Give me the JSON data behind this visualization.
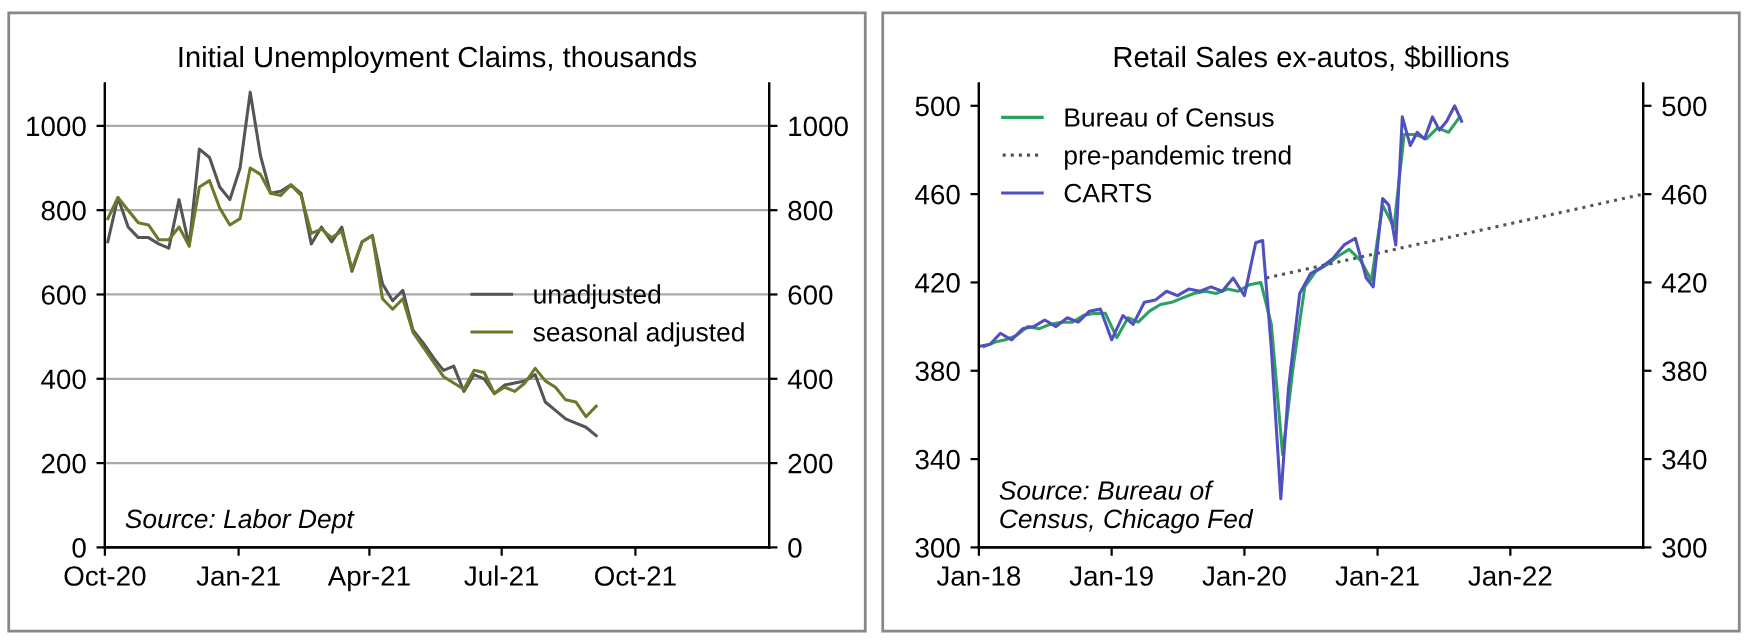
{
  "chart_data": [
    {
      "type": "line",
      "title": "Initial Unemployment Claims, thousands",
      "x": [
        "2020-10-03",
        "2020-10-10",
        "2020-10-17",
        "2020-10-24",
        "2020-10-31",
        "2020-11-07",
        "2020-11-14",
        "2020-11-21",
        "2020-11-28",
        "2020-12-05",
        "2020-12-12",
        "2020-12-19",
        "2020-12-26",
        "2021-01-02",
        "2021-01-09",
        "2021-01-16",
        "2021-01-23",
        "2021-01-30",
        "2021-02-06",
        "2021-02-13",
        "2021-02-20",
        "2021-02-27",
        "2021-03-06",
        "2021-03-13",
        "2021-03-20",
        "2021-03-27",
        "2021-04-03",
        "2021-04-10",
        "2021-04-17",
        "2021-04-24",
        "2021-05-01",
        "2021-05-08",
        "2021-05-15",
        "2021-05-22",
        "2021-05-29",
        "2021-06-05",
        "2021-06-12",
        "2021-06-19",
        "2021-06-26",
        "2021-07-03",
        "2021-07-10",
        "2021-07-17",
        "2021-07-24",
        "2021-07-31",
        "2021-08-07",
        "2021-08-14",
        "2021-08-21",
        "2021-08-28",
        "2021-09-04"
      ],
      "series": [
        {
          "name": "unadjusted",
          "color": "#555555",
          "values": [
            725,
            830,
            760,
            735,
            735,
            720,
            710,
            825,
            715,
            945,
            925,
            855,
            825,
            900,
            1080,
            930,
            840,
            845,
            860,
            840,
            720,
            760,
            725,
            760,
            655,
            725,
            740,
            625,
            585,
            610,
            515,
            485,
            450,
            420,
            430,
            370,
            410,
            400,
            365,
            385,
            390,
            395,
            410,
            345,
            325,
            305,
            295,
            285,
            265
          ]
        },
        {
          "name": "seasonal adjusted",
          "color": "#6b7a2a",
          "values": [
            780,
            830,
            800,
            770,
            765,
            730,
            730,
            760,
            715,
            855,
            870,
            805,
            765,
            780,
            900,
            885,
            840,
            835,
            860,
            835,
            745,
            755,
            735,
            750,
            660,
            725,
            740,
            590,
            565,
            590,
            510,
            475,
            440,
            405,
            390,
            375,
            420,
            415,
            365,
            380,
            370,
            390,
            425,
            395,
            380,
            350,
            345,
            310,
            335
          ]
        }
      ],
      "xlim": [
        "2020-10-01",
        "2022-01-01"
      ],
      "xticks": [
        {
          "value": "2020-10-01",
          "label": "Oct-20"
        },
        {
          "value": "2021-01-01",
          "label": "Jan-21"
        },
        {
          "value": "2021-04-01",
          "label": "Apr-21"
        },
        {
          "value": "2021-07-01",
          "label": "Jul-21"
        },
        {
          "value": "2021-10-01",
          "label": "Oct-21"
        }
      ],
      "ylim": [
        0,
        1100
      ],
      "yticks": [
        0,
        200,
        400,
        600,
        800,
        1000
      ],
      "y2lim": [
        0,
        1100
      ],
      "y2ticks": [
        0,
        200,
        400,
        600,
        800,
        1000
      ],
      "grid": "y",
      "legend": "right",
      "annotations": [
        "Source: Labor Dept"
      ]
    },
    {
      "type": "line",
      "title": "Retail Sales ex-autos, $billions",
      "series": [
        {
          "name": "Bureau of Census",
          "color": "#2ca25f",
          "x": [
            "2018-01-15",
            "2018-02-15",
            "2018-03-15",
            "2018-04-15",
            "2018-05-15",
            "2018-06-15",
            "2018-07-15",
            "2018-08-15",
            "2018-09-15",
            "2018-10-15",
            "2018-11-15",
            "2018-12-15",
            "2019-01-15",
            "2019-02-15",
            "2019-03-15",
            "2019-04-15",
            "2019-05-15",
            "2019-06-15",
            "2019-07-15",
            "2019-08-15",
            "2019-09-15",
            "2019-10-15",
            "2019-11-15",
            "2019-12-15",
            "2020-01-15",
            "2020-02-15",
            "2020-03-15",
            "2020-04-15",
            "2020-05-15",
            "2020-06-15",
            "2020-07-15",
            "2020-08-15",
            "2020-09-15",
            "2020-10-15",
            "2020-11-15",
            "2020-12-15",
            "2021-01-15",
            "2021-02-15",
            "2021-03-15",
            "2021-04-15",
            "2021-05-15",
            "2021-06-15",
            "2021-07-15",
            "2021-08-15"
          ],
          "values": [
            391,
            393,
            394,
            396,
            400,
            399,
            401,
            402,
            402,
            405,
            406,
            406,
            395,
            404,
            402,
            407,
            410,
            411,
            413,
            415,
            416,
            415,
            417,
            416,
            419,
            420,
            401,
            342,
            383,
            418,
            425,
            428,
            432,
            435,
            430,
            421,
            455,
            445,
            487,
            487,
            485,
            490,
            488,
            495
          ]
        },
        {
          "name": "pre-pandemic trend",
          "color": "#555555",
          "line_style": "dotted",
          "x": [
            "2020-03-01",
            "2023-01-01"
          ],
          "values": [
            422,
            460
          ]
        },
        {
          "name": "CARTS",
          "color": "#5050c0",
          "x": [
            "2018-01-01",
            "2018-02-01",
            "2018-03-01",
            "2018-04-01",
            "2018-05-01",
            "2018-06-01",
            "2018-07-01",
            "2018-08-01",
            "2018-09-01",
            "2018-10-01",
            "2018-11-01",
            "2018-12-01",
            "2019-01-01",
            "2019-02-01",
            "2019-03-01",
            "2019-04-01",
            "2019-05-01",
            "2019-06-01",
            "2019-07-01",
            "2019-08-01",
            "2019-09-01",
            "2019-10-01",
            "2019-11-01",
            "2019-12-01",
            "2020-01-01",
            "2020-02-01",
            "2020-02-20",
            "2020-03-15",
            "2020-04-10",
            "2020-05-01",
            "2020-06-01",
            "2020-07-01",
            "2020-08-01",
            "2020-09-01",
            "2020-10-01",
            "2020-11-01",
            "2020-12-01",
            "2020-12-20",
            "2021-01-15",
            "2021-02-01",
            "2021-02-20",
            "2021-03-10",
            "2021-04-01",
            "2021-04-20",
            "2021-05-10",
            "2021-06-01",
            "2021-06-20",
            "2021-07-10",
            "2021-08-01",
            "2021-08-20"
          ],
          "values": [
            391,
            392,
            397,
            394,
            399,
            400,
            403,
            400,
            404,
            402,
            407,
            408,
            394,
            405,
            401,
            411,
            412,
            416,
            414,
            417,
            416,
            418,
            416,
            422,
            414,
            438,
            439,
            390,
            322,
            372,
            415,
            424,
            427,
            431,
            437,
            440,
            422,
            418,
            458,
            455,
            437,
            495,
            482,
            488,
            485,
            495,
            489,
            493,
            500,
            493
          ]
        }
      ],
      "xlim": [
        "2018-01-01",
        "2023-01-01"
      ],
      "xticks": [
        {
          "value": "2018-01-01",
          "label": "Jan-18"
        },
        {
          "value": "2019-01-01",
          "label": "Jan-19"
        },
        {
          "value": "2020-01-01",
          "label": "Jan-20"
        },
        {
          "value": "2021-01-01",
          "label": "Jan-21"
        },
        {
          "value": "2022-01-01",
          "label": "Jan-22"
        }
      ],
      "ylim": [
        300,
        510
      ],
      "yticks": [
        300,
        340,
        380,
        420,
        460,
        500
      ],
      "y2lim": [
        300,
        510
      ],
      "y2ticks": [
        300,
        340,
        380,
        420,
        460,
        500
      ],
      "legend": "top left",
      "annotations": [
        "Source: Bureau of\nCensus, Chicago Fed"
      ]
    }
  ]
}
